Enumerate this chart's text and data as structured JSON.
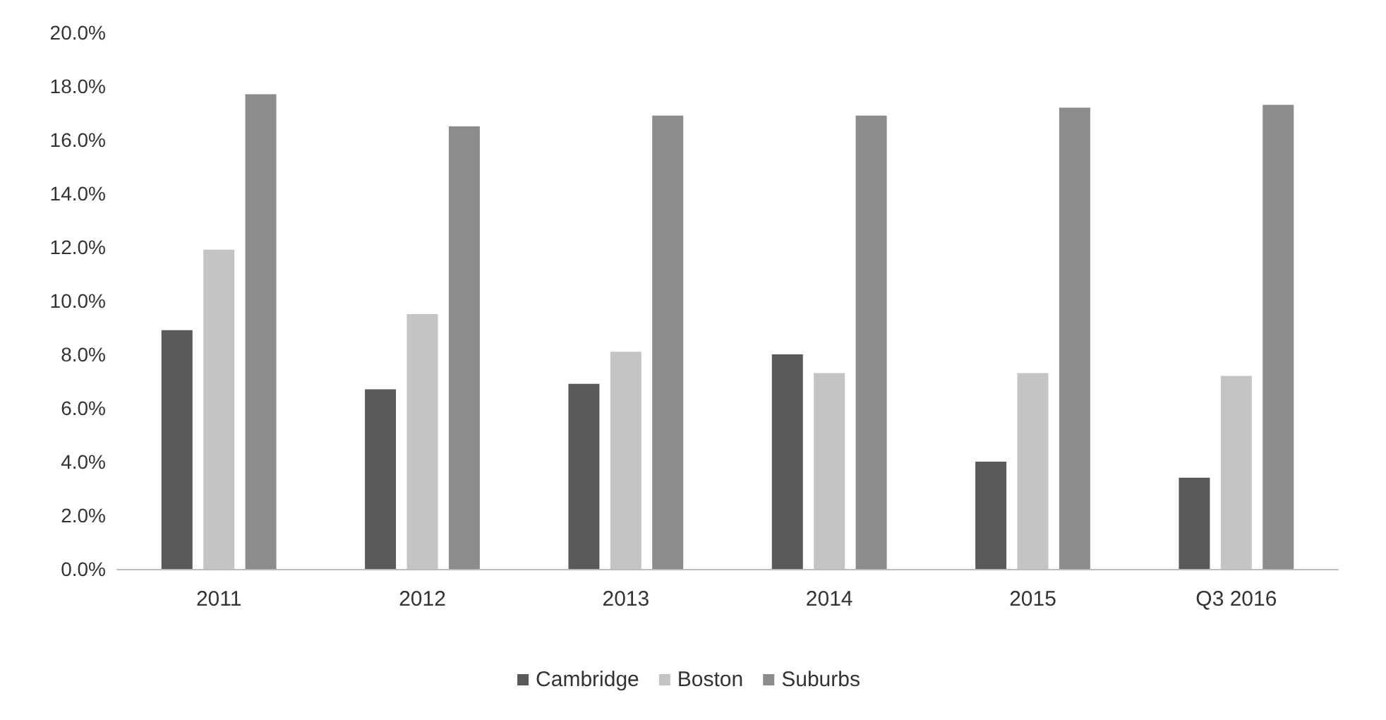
{
  "chart_data": {
    "type": "bar",
    "categories": [
      "2011",
      "2012",
      "2013",
      "2014",
      "2015",
      "Q3 2016"
    ],
    "series": [
      {
        "name": "Cambridge",
        "color": "#595959",
        "values": [
          8.9,
          6.7,
          6.9,
          8.0,
          4.0,
          3.4
        ]
      },
      {
        "name": "Boston",
        "color": "#c4c4c4",
        "values": [
          11.9,
          9.5,
          8.1,
          7.3,
          7.3,
          7.2
        ]
      },
      {
        "name": "Suburbs",
        "color": "#8c8c8c",
        "values": [
          17.7,
          16.5,
          16.9,
          16.9,
          17.2,
          17.3
        ]
      }
    ],
    "ylim": [
      0,
      20
    ],
    "yticks": [
      {
        "value": 0,
        "label": "0.0%"
      },
      {
        "value": 2,
        "label": "2.0%"
      },
      {
        "value": 4,
        "label": "4.0%"
      },
      {
        "value": 6,
        "label": "6.0%"
      },
      {
        "value": 8,
        "label": "8.0%"
      },
      {
        "value": 10,
        "label": "10.0%"
      },
      {
        "value": 12,
        "label": "12.0%"
      },
      {
        "value": 14,
        "label": "14.0%"
      },
      {
        "value": 16,
        "label": "16.0%"
      },
      {
        "value": 18,
        "label": "18.0%"
      },
      {
        "value": 20,
        "label": "20.0%"
      }
    ],
    "legend": "bottom",
    "grid": false
  }
}
